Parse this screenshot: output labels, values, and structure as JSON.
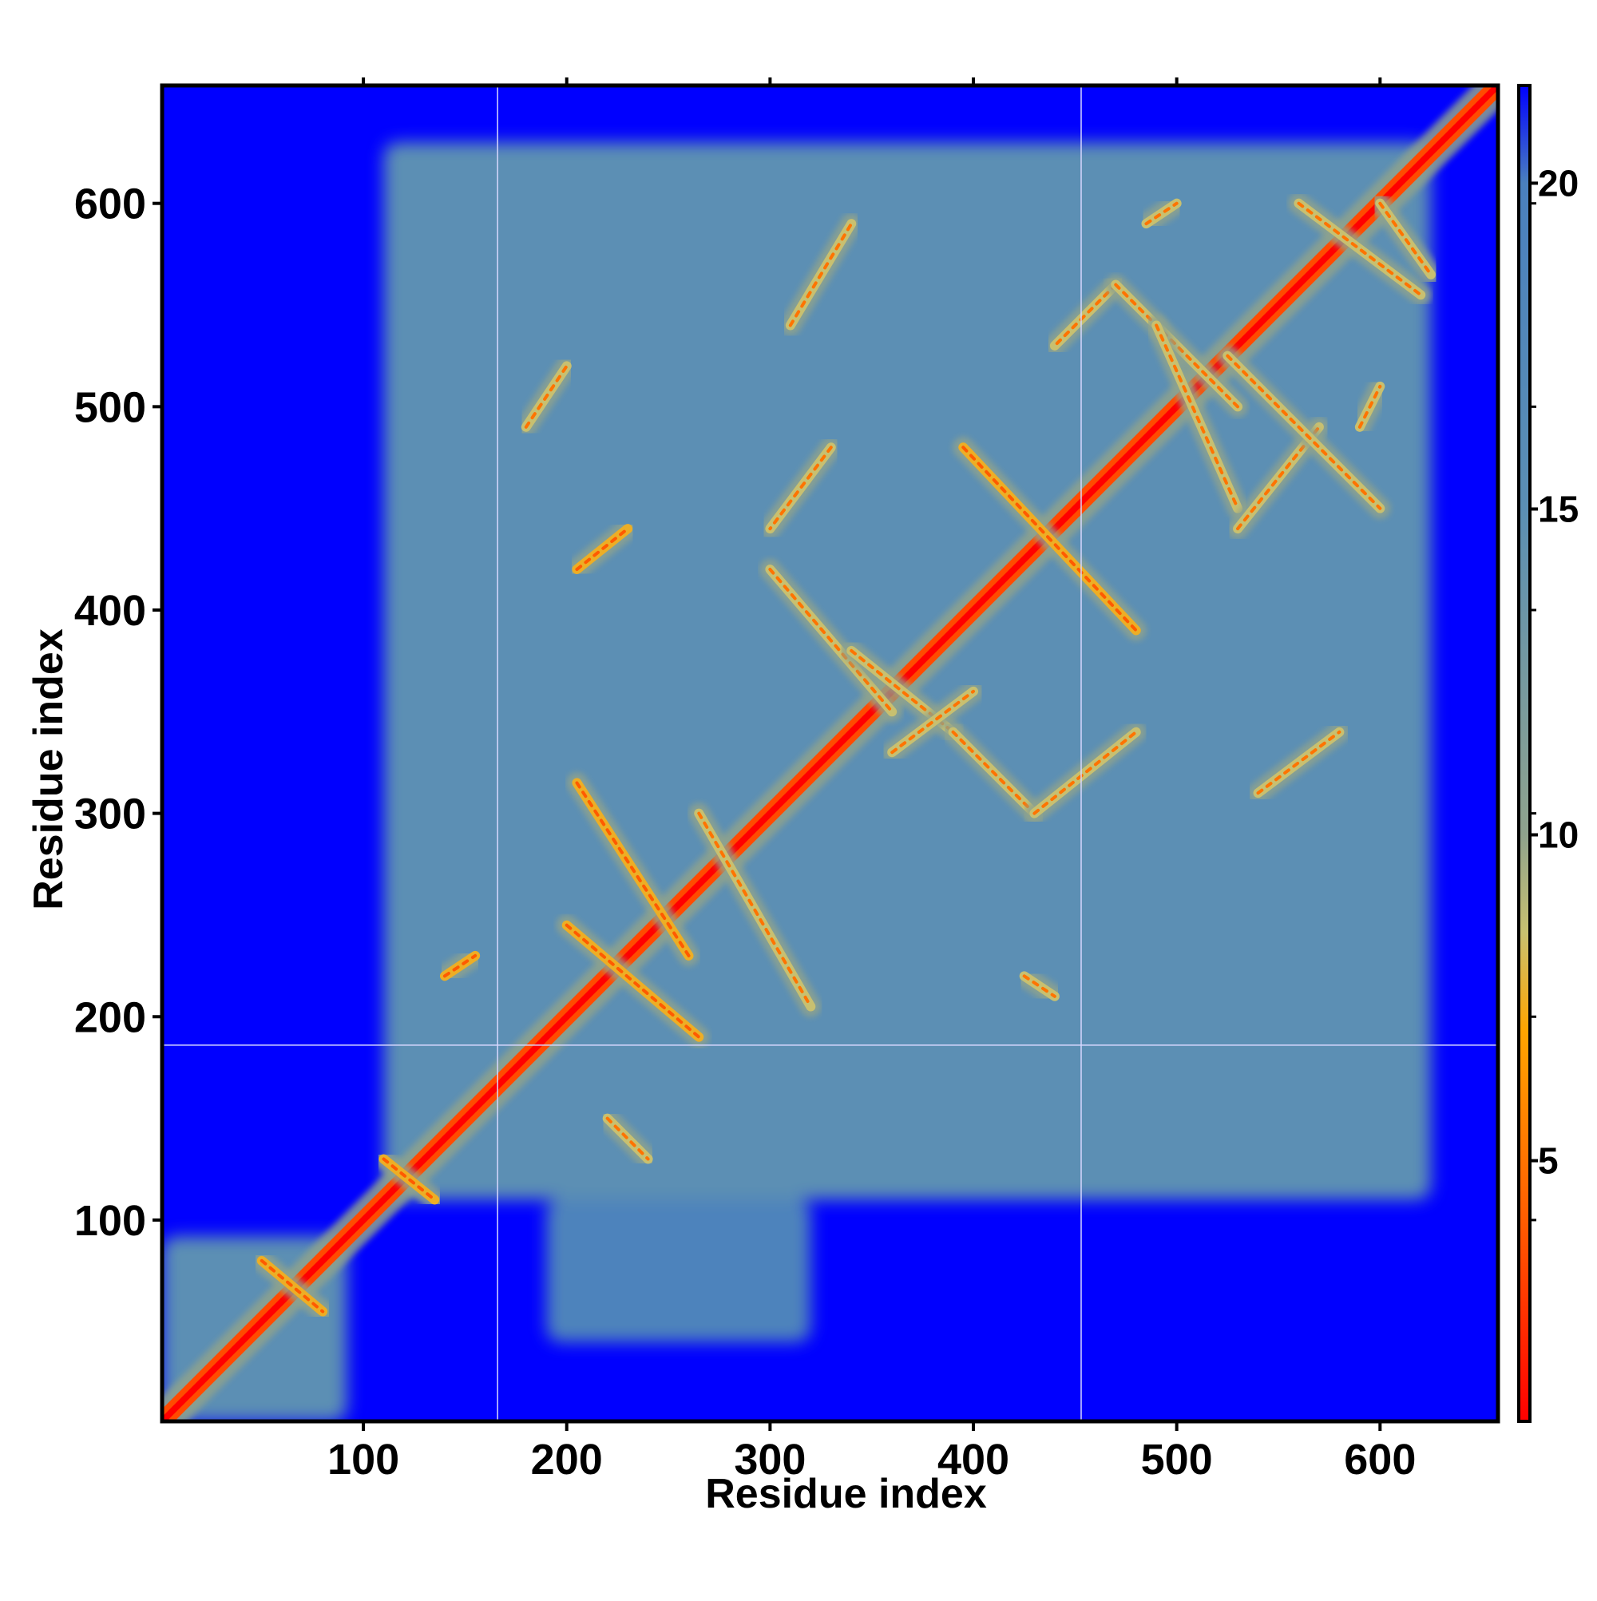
{
  "chart_data": {
    "type": "heatmap",
    "title": "",
    "xlabel": "Residue index",
    "ylabel": "Residue index",
    "xlim": [
      1,
      658
    ],
    "ylim": [
      1,
      658
    ],
    "x_ticks": [
      100,
      200,
      300,
      400,
      500,
      600
    ],
    "y_ticks": [
      100,
      200,
      300,
      400,
      500,
      600
    ],
    "colorbar": {
      "range": [
        1,
        21.5
      ],
      "ticks": [
        5,
        10,
        15,
        20
      ],
      "stops": [
        {
          "value": 1,
          "color": "#ff0000"
        },
        {
          "value": 4,
          "color": "#ff5a00"
        },
        {
          "value": 7,
          "color": "#ffa500"
        },
        {
          "value": 8.5,
          "color": "#c8c070"
        },
        {
          "value": 10,
          "color": "#8fa38d"
        },
        {
          "value": 15,
          "color": "#5b8fb4"
        },
        {
          "value": 20,
          "color": "#4a80be"
        },
        {
          "value": 21.5,
          "color": "#0000ff"
        }
      ]
    },
    "background_value": 21.5,
    "background_color": "#0000ff",
    "domain_boundaries": {
      "x": [
        166,
        453
      ],
      "y": [
        186
      ]
    },
    "regions": [
      {
        "x": [
          1,
          92
        ],
        "y": [
          1,
          92
        ],
        "value": 15
      },
      {
        "x": [
          110,
          625
        ],
        "y": [
          110,
          630
        ],
        "value": 15
      },
      {
        "x": [
          190,
          320
        ],
        "y": [
          40,
          110
        ],
        "value": 19
      }
    ],
    "contact_streaks": [
      {
        "from": [
          1,
          1
        ],
        "to": [
          658,
          658
        ],
        "value": 2
      },
      {
        "from": [
          205,
          315
        ],
        "to": [
          260,
          230
        ],
        "value": 6
      },
      {
        "from": [
          200,
          245
        ],
        "to": [
          265,
          190
        ],
        "value": 6
      },
      {
        "from": [
          265,
          300
        ],
        "to": [
          320,
          205
        ],
        "value": 7
      },
      {
        "from": [
          300,
          420
        ],
        "to": [
          360,
          350
        ],
        "value": 7
      },
      {
        "from": [
          330,
          480
        ],
        "to": [
          300,
          440
        ],
        "value": 7
      },
      {
        "from": [
          340,
          380
        ],
        "to": [
          390,
          340
        ],
        "value": 7
      },
      {
        "from": [
          360,
          330
        ],
        "to": [
          400,
          360
        ],
        "value": 7
      },
      {
        "from": [
          395,
          480
        ],
        "to": [
          480,
          390
        ],
        "value": 6
      },
      {
        "from": [
          390,
          340
        ],
        "to": [
          430,
          300
        ],
        "value": 7
      },
      {
        "from": [
          430,
          300
        ],
        "to": [
          480,
          340
        ],
        "value": 7
      },
      {
        "from": [
          470,
          560
        ],
        "to": [
          440,
          530
        ],
        "value": 7
      },
      {
        "from": [
          470,
          560
        ],
        "to": [
          530,
          500
        ],
        "value": 7
      },
      {
        "from": [
          490,
          540
        ],
        "to": [
          530,
          450
        ],
        "value": 7
      },
      {
        "from": [
          530,
          440
        ],
        "to": [
          570,
          490
        ],
        "value": 7
      },
      {
        "from": [
          525,
          525
        ],
        "to": [
          600,
          450
        ],
        "value": 7
      },
      {
        "from": [
          540,
          310
        ],
        "to": [
          580,
          340
        ],
        "value": 7
      },
      {
        "from": [
          560,
          600
        ],
        "to": [
          620,
          555
        ],
        "value": 7
      },
      {
        "from": [
          600,
          600
        ],
        "to": [
          625,
          565
        ],
        "value": 7
      },
      {
        "from": [
          310,
          540
        ],
        "to": [
          340,
          590
        ],
        "value": 7
      },
      {
        "from": [
          140,
          220
        ],
        "to": [
          155,
          230
        ],
        "value": 6
      },
      {
        "from": [
          205,
          420
        ],
        "to": [
          230,
          440
        ],
        "value": 6
      },
      {
        "from": [
          180,
          490
        ],
        "to": [
          200,
          520
        ],
        "value": 7
      },
      {
        "from": [
          110,
          130
        ],
        "to": [
          135,
          110
        ],
        "value": 6
      },
      {
        "from": [
          220,
          150
        ],
        "to": [
          240,
          130
        ],
        "value": 7
      },
      {
        "from": [
          50,
          80
        ],
        "to": [
          80,
          55
        ],
        "value": 6
      },
      {
        "from": [
          425,
          220
        ],
        "to": [
          440,
          210
        ],
        "value": 7
      },
      {
        "from": [
          485,
          590
        ],
        "to": [
          500,
          600
        ],
        "value": 7
      },
      {
        "from": [
          590,
          490
        ],
        "to": [
          600,
          510
        ],
        "value": 7
      }
    ]
  }
}
